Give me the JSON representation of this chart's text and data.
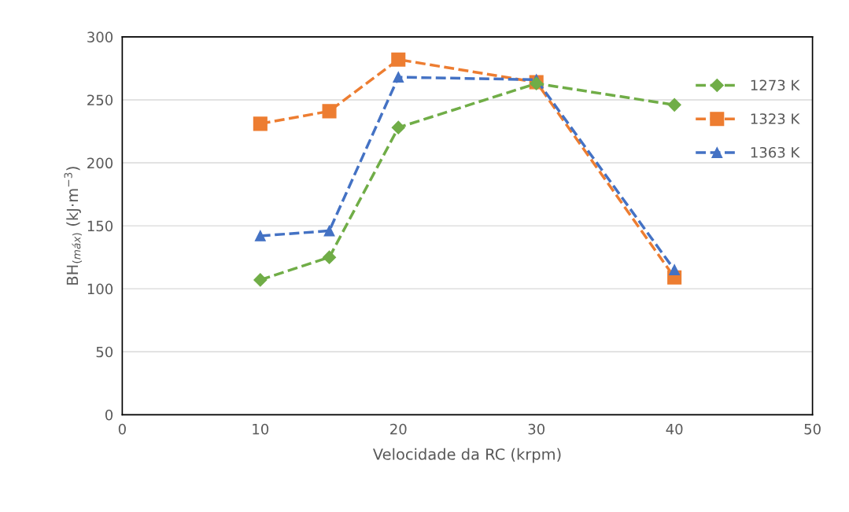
{
  "chart_data": {
    "type": "line",
    "xlabel": "Velocidade da RC (krpm)",
    "ylabel": "BH$_{(máx)}$ (kJ·m$^{−3}$)",
    "x": [
      10,
      15,
      20,
      30,
      40
    ],
    "series": [
      {
        "name": "1273 K",
        "color": "#70ad47",
        "marker": "diamond",
        "values": [
          107,
          125,
          228,
          263,
          246
        ]
      },
      {
        "name": "1323 K",
        "color": "#ed7d31",
        "marker": "square",
        "values": [
          231,
          241,
          282,
          264,
          109
        ]
      },
      {
        "name": "1363 K",
        "color": "#4472c4",
        "marker": "triangle",
        "values": [
          142,
          146,
          268,
          266,
          115
        ]
      }
    ],
    "xlim": [
      0,
      50
    ],
    "xticks": [
      0,
      10,
      20,
      30,
      40,
      50
    ],
    "ylim": [
      0,
      300
    ],
    "yticks": [
      0,
      50,
      100,
      150,
      200,
      250,
      300
    ],
    "grid": "y",
    "legend": "right",
    "line_style": "dashed"
  }
}
